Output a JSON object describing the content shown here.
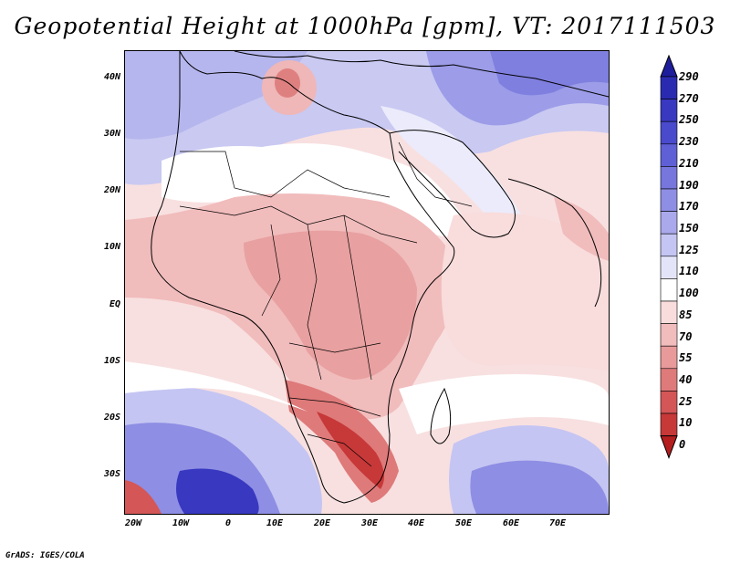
{
  "title": "Geopotential Height at 1000hPa [gpm], VT: 2017111503",
  "credit": "GrADS: IGES/COLA",
  "lat_labels": [
    "40N",
    "30N",
    "20N",
    "10N",
    "EQ",
    "10S",
    "20S",
    "30S"
  ],
  "lon_labels": [
    "20W",
    "10W",
    "0",
    "10E",
    "20E",
    "30E",
    "40E",
    "50E",
    "60E",
    "70E"
  ],
  "colorbar": {
    "levels": [
      "290",
      "270",
      "250",
      "230",
      "210",
      "190",
      "170",
      "150",
      "125",
      "110",
      "100",
      "85",
      "70",
      "55",
      "40",
      "25",
      "10",
      "0"
    ],
    "colors": [
      "#1e1e9c",
      "#2a2ab0",
      "#3838c0",
      "#4a4acc",
      "#5f5fd6",
      "#7676dd",
      "#8e8ee4",
      "#a9a9ec",
      "#c5c5f3",
      "#e4e4f9",
      "#ffffff",
      "#f9dcdc",
      "#f1bcbc",
      "#e89a9a",
      "#df7a7a",
      "#d45656",
      "#c73838",
      "#b51e1e"
    ]
  }
}
